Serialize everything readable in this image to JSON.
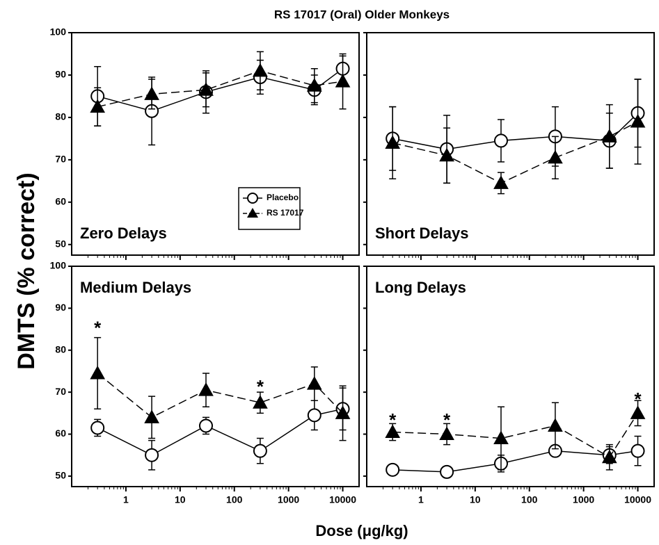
{
  "title": "RS 17017 (Oral) Older Monkeys",
  "ylabel": "DMTS (% correct)",
  "xlabel": "Dose (μg/kg)",
  "chart_data": [
    {
      "type": "line",
      "title": "Zero Delays",
      "log_x": true,
      "legend": "lower right",
      "x": [
        0.3,
        3,
        30,
        300,
        3000,
        10000
      ],
      "xlim": [
        0.1,
        20000
      ],
      "xticks": [
        1,
        10,
        100,
        1000,
        10000
      ],
      "ylim": [
        47.5,
        100
      ],
      "yticks": [
        50,
        60,
        70,
        80,
        90,
        100
      ],
      "series": [
        {
          "name": "Placebo",
          "color": "#000000",
          "marker": "circle",
          "dash": false,
          "values": [
            85,
            81.5,
            86,
            89.5,
            86.5,
            91.5
          ],
          "errors": [
            7,
            8,
            5,
            4,
            3.5,
            3
          ]
        },
        {
          "name": "RS 17017",
          "color": "#000000",
          "marker": "triangle",
          "dash": true,
          "values": [
            82.5,
            85.5,
            86.5,
            91,
            87.5,
            88.5
          ],
          "errors": [
            4.5,
            3.5,
            4,
            4.5,
            4,
            6.5
          ]
        }
      ]
    },
    {
      "type": "line",
      "title": "Short Delays",
      "log_x": true,
      "x": [
        0.3,
        3,
        30,
        300,
        3000,
        10000
      ],
      "xlim": [
        0.1,
        20000
      ],
      "xticks": [
        1,
        10,
        100,
        1000,
        10000
      ],
      "ylim": [
        47.5,
        100
      ],
      "yticks": [
        50,
        60,
        70,
        80,
        90,
        100
      ],
      "series": [
        {
          "color": "#000000",
          "marker": "circle",
          "dash": false,
          "values": [
            75,
            72.5,
            74.5,
            75.5,
            74.5,
            81
          ],
          "errors": [
            7.5,
            8,
            5,
            7,
            6.5,
            8
          ]
        },
        {
          "color": "#000000",
          "marker": "triangle",
          "dash": true,
          "values": [
            74,
            71,
            64.5,
            70.5,
            75.5,
            79
          ],
          "errors": [
            8.5,
            6.5,
            2.5,
            5,
            7.5,
            10
          ]
        }
      ]
    },
    {
      "type": "line",
      "title": "Medium Delays",
      "log_x": true,
      "x": [
        0.3,
        3,
        30,
        300,
        3000,
        10000
      ],
      "xlim": [
        0.1,
        20000
      ],
      "xticks": [
        1,
        10,
        100,
        1000,
        10000
      ],
      "ylim": [
        47.5,
        100
      ],
      "yticks": [
        50,
        60,
        70,
        80,
        90,
        100
      ],
      "series": [
        {
          "color": "#000000",
          "marker": "circle",
          "dash": false,
          "values": [
            61.5,
            55,
            62,
            56,
            64.5,
            66
          ],
          "errors": [
            2,
            3.5,
            2,
            3,
            3.5,
            5
          ]
        },
        {
          "color": "#000000",
          "marker": "triangle",
          "dash": true,
          "values": [
            74.5,
            64,
            70.5,
            67.5,
            72,
            65
          ],
          "errors": [
            8.5,
            5,
            4,
            2.5,
            4,
            6.5
          ]
        }
      ],
      "annotations": [
        {
          "text": "*",
          "x": 0.3,
          "y": 86
        },
        {
          "text": "*",
          "x": 300,
          "y": 72
        }
      ]
    },
    {
      "type": "line",
      "title": "Long Delays",
      "log_x": true,
      "x": [
        0.3,
        3,
        30,
        300,
        3000,
        10000
      ],
      "xlim": [
        0.1,
        20000
      ],
      "xticks": [
        1,
        10,
        100,
        1000,
        10000
      ],
      "ylim": [
        47.5,
        100
      ],
      "yticks": [
        50,
        60,
        70,
        80,
        90,
        100
      ],
      "series": [
        {
          "color": "#000000",
          "marker": "circle",
          "dash": false,
          "values": [
            51.5,
            51,
            53,
            56,
            55,
            56
          ],
          "errors": [
            1,
            1,
            2,
            1,
            2,
            3.5
          ]
        },
        {
          "color": "#000000",
          "marker": "triangle",
          "dash": true,
          "values": [
            60.5,
            60,
            59,
            62,
            54.5,
            65
          ],
          "errors": [
            2,
            2.5,
            7.5,
            5.5,
            3,
            3
          ]
        }
      ],
      "annotations": [
        {
          "text": "*",
          "x": 0.3,
          "y": 64
        },
        {
          "text": "*",
          "x": 3,
          "y": 64
        },
        {
          "text": "*",
          "x": 10000,
          "y": 69
        }
      ]
    }
  ]
}
